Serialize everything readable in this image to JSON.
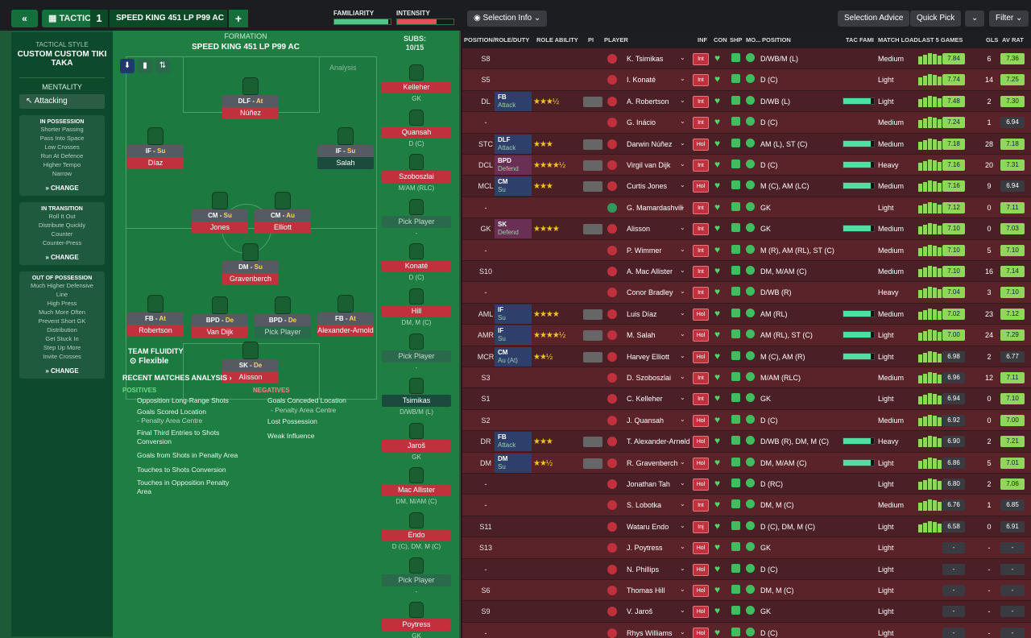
{
  "topbar": {
    "back": "«",
    "tactics_label": "TACTICS",
    "tactic_number": "1",
    "tactic_name": "SPEED KING 451 LP P99 AC",
    "plus": "+",
    "familiarity_label": "FAMILIARITY",
    "intensity_label": "INTENSITY"
  },
  "sidebar": {
    "tactical_style_label": "TACTICAL STYLE",
    "tactical_style_value": "CUSTOM CUSTOM TIKI TAKA",
    "mentality_label": "MENTALITY",
    "mentality_value": "Attacking",
    "in_possession": {
      "title": "IN POSSESSION",
      "items": [
        "Shorter Passing",
        "Pass Into Space",
        "Low Crosses",
        "Run At Defence",
        "Higher Tempo",
        "Narrow"
      ],
      "change": "CHANGE"
    },
    "in_transition": {
      "title": "IN TRANSITION",
      "items": [
        "Roll It Out",
        "Distribute Quickly",
        "Counter",
        "Counter-Press"
      ],
      "change": "CHANGE"
    },
    "out_of_possession": {
      "title": "OUT OF POSSESSION",
      "items": [
        "Much Higher Defensive",
        "Line",
        "High Press",
        "Much More Often",
        "Prevent Short GK",
        "Distribution",
        "Get Stuck In",
        "Step Up More",
        "Invite Crosses"
      ],
      "change": "CHANGE"
    }
  },
  "formation": {
    "label": "FORMATION",
    "name": "SPEED KING 451 LP P99 AC",
    "analysis": "Analysis",
    "team_fluidity_label": "TEAM FLUIDITY",
    "team_fluidity_value": "Flexible"
  },
  "positions": [
    {
      "role": "DLF",
      "duty": "At",
      "name": "Núñez"
    },
    {
      "role": "IF",
      "duty": "Su",
      "name": "Díaz"
    },
    {
      "role": "IF",
      "duty": "Su",
      "name": "Salah"
    },
    {
      "role": "CM",
      "duty": "Su",
      "name": "Jones"
    },
    {
      "role": "CM",
      "duty": "Au",
      "name": "Elliott"
    },
    {
      "role": "DM",
      "duty": "Su",
      "name": "Gravenberch"
    },
    {
      "role": "FB",
      "duty": "At",
      "name": "Robertson"
    },
    {
      "role": "BPD",
      "duty": "De",
      "name": "Van Dijk"
    },
    {
      "role": "BPD",
      "duty": "De",
      "name": "Pick Player"
    },
    {
      "role": "FB",
      "duty": "At",
      "name": "Alexander-Arnold"
    },
    {
      "role": "SK",
      "duty": "De",
      "name": "Alisson"
    }
  ],
  "subs": {
    "label": "SUBS:",
    "count": "10/15",
    "items": [
      {
        "name": "Kelleher",
        "pos": "GK"
      },
      {
        "name": "Quansah",
        "pos": "D (C)"
      },
      {
        "name": "Szoboszlai",
        "pos": "M/AM (RLC)"
      },
      {
        "name": "Pick Player",
        "pos": "-"
      },
      {
        "name": "Konaté",
        "pos": "D (C)"
      },
      {
        "name": "Hill",
        "pos": "DM, M (C)"
      },
      {
        "name": "Pick Player",
        "pos": "-"
      },
      {
        "name": "Tsimikas",
        "pos": "D/WB/M (L)"
      },
      {
        "name": "Jaroš",
        "pos": "GK"
      },
      {
        "name": "Mac Allister",
        "pos": "DM, M/AM (C)"
      },
      {
        "name": "Endo",
        "pos": "D (C), DM, M (C)"
      },
      {
        "name": "Pick Player",
        "pos": "-"
      },
      {
        "name": "Poytress",
        "pos": "GK"
      }
    ]
  },
  "analysis": {
    "title": "RECENT MATCHES ANALYSIS ›",
    "positives_label": "POSITIVES",
    "negatives_label": "NEGATIVES",
    "positives": [
      "Opposition Long-Range Shots",
      "Goals Scored Location",
      "- Penalty Area Centre",
      "Final Third Entries to Shots",
      "Conversion",
      "Goals from Shots in Penalty Area",
      "Touches to Shots Conversion",
      "Touches in Opposition Penalty",
      "Area"
    ],
    "negatives": [
      "Goals Conceded Location",
      "- Penalty Area Centre",
      "Lost Possession",
      "Weak Influence"
    ]
  },
  "right_toolbar": {
    "selection_info": "Selection Info",
    "selection_advice": "Selection Advice",
    "quick_pick": "Quick Pick",
    "filter": "Filter"
  },
  "table_headers": [
    "POSITION/ROLE/DUTY",
    "ROLE ABILITY",
    "PI",
    "PLAYER",
    "INF",
    "CON",
    "SHP",
    "MO...",
    "POSITION",
    "TAC FAMI",
    "MATCH LOAD",
    "LAST 5 GAMES",
    "GLS",
    "AV RAT"
  ],
  "rows": [
    {
      "pos": "S8",
      "role": "",
      "duty": "",
      "stars": "",
      "player": "K. Tsimikas",
      "inf": "Int",
      "position": "D/WB/M (L)",
      "load": "Medium",
      "last": "7.84",
      "gls": "6",
      "av": "7.36"
    },
    {
      "pos": "S5",
      "role": "",
      "duty": "",
      "stars": "",
      "player": "I. Konaté",
      "inf": "Int",
      "position": "D (C)",
      "load": "Light",
      "last": "7.74",
      "gls": "14",
      "av": "7.25"
    },
    {
      "pos": "DL",
      "role": "FB",
      "duty": "Attack",
      "stars": "★★★½",
      "player": "A. Robertson",
      "inf": "Int",
      "position": "D/WB (L)",
      "load": "Light",
      "last": "7.48",
      "gls": "2",
      "av": "7.30"
    },
    {
      "pos": "-",
      "role": "",
      "duty": "",
      "stars": "",
      "player": "G. Inácio",
      "inf": "Int",
      "position": "D (C)",
      "load": "Medium",
      "last": "7.24",
      "gls": "1",
      "av": "6.94"
    },
    {
      "pos": "STC",
      "role": "DLF",
      "duty": "Attack",
      "stars": "★★★",
      "player": "Darwin Núñez",
      "inf": "Hol",
      "position": "AM (L), ST (C)",
      "load": "Medium",
      "last": "7.18",
      "gls": "28",
      "av": "7.18"
    },
    {
      "pos": "DCL",
      "role": "BPD",
      "duty": "Defend",
      "stars": "★★★★½",
      "player": "Virgil van Dijk",
      "inf": "Int",
      "position": "D (C)",
      "load": "Heavy",
      "last": "7.16",
      "gls": "20",
      "av": "7.31"
    },
    {
      "pos": "MCL",
      "role": "CM",
      "duty": "Su",
      "stars": "★★★",
      "player": "Curtis Jones",
      "inf": "Hol",
      "position": "M (C), AM (LC)",
      "load": "Medium",
      "last": "7.16",
      "gls": "9",
      "av": "6.94"
    },
    {
      "pos": "-",
      "role": "",
      "duty": "",
      "stars": "",
      "player": "G. Mamardashvili",
      "inf": "Int",
      "position": "GK",
      "load": "Light",
      "last": "7.12",
      "gls": "0",
      "av": "7.11"
    },
    {
      "pos": "GK",
      "role": "SK",
      "duty": "Defend",
      "stars": "★★★★",
      "player": "Alisson",
      "inf": "Int",
      "position": "GK",
      "load": "Medium",
      "last": "7.10",
      "gls": "0",
      "av": "7.03"
    },
    {
      "pos": "-",
      "role": "",
      "duty": "",
      "stars": "",
      "player": "P. Wimmer",
      "inf": "Int",
      "position": "M (R), AM (RL), ST (C)",
      "load": "Medium",
      "last": "7.10",
      "gls": "5",
      "av": "7.10"
    },
    {
      "pos": "S10",
      "role": "",
      "duty": "",
      "stars": "",
      "player": "A. Mac Allister",
      "inf": "Int",
      "position": "DM, M/AM (C)",
      "load": "Medium",
      "last": "7.10",
      "gls": "16",
      "av": "7.14"
    },
    {
      "pos": "-",
      "role": "",
      "duty": "",
      "stars": "",
      "player": "Conor Bradley",
      "inf": "Int",
      "position": "D/WB (R)",
      "load": "Heavy",
      "last": "7.04",
      "gls": "3",
      "av": "7.10"
    },
    {
      "pos": "AML",
      "role": "IF",
      "duty": "Su",
      "stars": "★★★★",
      "player": "Luis Díaz",
      "inf": "Hol",
      "position": "AM (RL)",
      "load": "Medium",
      "last": "7.02",
      "gls": "23",
      "av": "7.12"
    },
    {
      "pos": "AMR",
      "role": "IF",
      "duty": "Su",
      "stars": "★★★★½",
      "player": "M. Salah",
      "inf": "Hol",
      "position": "AM (RL), ST (C)",
      "load": "Light",
      "last": "7.00",
      "gls": "24",
      "av": "7.29"
    },
    {
      "pos": "MCR",
      "role": "CM",
      "duty": "Au (At)",
      "stars": "★★½",
      "player": "Harvey Elliott",
      "inf": "Hol",
      "position": "M (C), AM (R)",
      "load": "Light",
      "last": "6.98",
      "gls": "2",
      "av": "6.77"
    },
    {
      "pos": "S3",
      "role": "",
      "duty": "",
      "stars": "",
      "player": "D. Szoboszlai",
      "inf": "Int",
      "position": "M/AM (RLC)",
      "load": "Medium",
      "last": "6.96",
      "gls": "12",
      "av": "7.11"
    },
    {
      "pos": "S1",
      "role": "",
      "duty": "",
      "stars": "",
      "player": "C. Kelleher",
      "inf": "Int",
      "position": "GK",
      "load": "Light",
      "last": "6.94",
      "gls": "0",
      "av": "7.10"
    },
    {
      "pos": "S2",
      "role": "",
      "duty": "",
      "stars": "",
      "player": "J. Quansah",
      "inf": "Hol",
      "position": "D (C)",
      "load": "Medium",
      "last": "6.92",
      "gls": "0",
      "av": "7.00"
    },
    {
      "pos": "DR",
      "role": "FB",
      "duty": "Attack",
      "stars": "★★★",
      "player": "T. Alexander-Arnold",
      "inf": "Hol",
      "position": "D/WB (R), DM, M (C)",
      "load": "Heavy",
      "last": "6.90",
      "gls": "2",
      "av": "7.21"
    },
    {
      "pos": "DM",
      "role": "DM",
      "duty": "Su",
      "stars": "★★½",
      "player": "R. Gravenberch",
      "inf": "Hol",
      "position": "DM, M/AM (C)",
      "load": "Light",
      "last": "6.86",
      "gls": "5",
      "av": "7.01"
    },
    {
      "pos": "-",
      "role": "",
      "duty": "",
      "stars": "",
      "player": "Jonathan Tah",
      "inf": "Hol",
      "position": "D (RC)",
      "load": "Light",
      "last": "6.80",
      "gls": "2",
      "av": "7.06"
    },
    {
      "pos": "-",
      "role": "",
      "duty": "",
      "stars": "",
      "player": "S. Lobotka",
      "inf": "Int",
      "position": "DM, M (C)",
      "load": "Medium",
      "last": "6.76",
      "gls": "1",
      "av": "6.85"
    },
    {
      "pos": "S11",
      "role": "",
      "duty": "",
      "stars": "",
      "player": "Wataru Endo",
      "inf": "Inj",
      "position": "D (C), DM, M (C)",
      "load": "Light",
      "last": "6.58",
      "gls": "0",
      "av": "6.91"
    },
    {
      "pos": "S13",
      "role": "",
      "duty": "",
      "stars": "",
      "player": "J. Poytress",
      "inf": "Hol",
      "position": "GK",
      "load": "Light",
      "last": "-",
      "gls": "-",
      "av": "-"
    },
    {
      "pos": "-",
      "role": "",
      "duty": "",
      "stars": "",
      "player": "N. Phillips",
      "inf": "Hol",
      "position": "D (C)",
      "load": "Light",
      "last": "-",
      "gls": "-",
      "av": "-"
    },
    {
      "pos": "S6",
      "role": "",
      "duty": "",
      "stars": "",
      "player": "Thomas Hill",
      "inf": "Hol",
      "position": "DM, M (C)",
      "load": "Light",
      "last": "-",
      "gls": "-",
      "av": "-"
    },
    {
      "pos": "S9",
      "role": "",
      "duty": "",
      "stars": "",
      "player": "V. Jaroš",
      "inf": "Hol",
      "position": "GK",
      "load": "Light",
      "last": "-",
      "gls": "-",
      "av": "-"
    },
    {
      "pos": "-",
      "role": "",
      "duty": "",
      "stars": "",
      "player": "Rhys Williams",
      "inf": "Hol",
      "position": "D (C)",
      "load": "Light",
      "last": "-",
      "gls": "-",
      "av": "-"
    }
  ]
}
